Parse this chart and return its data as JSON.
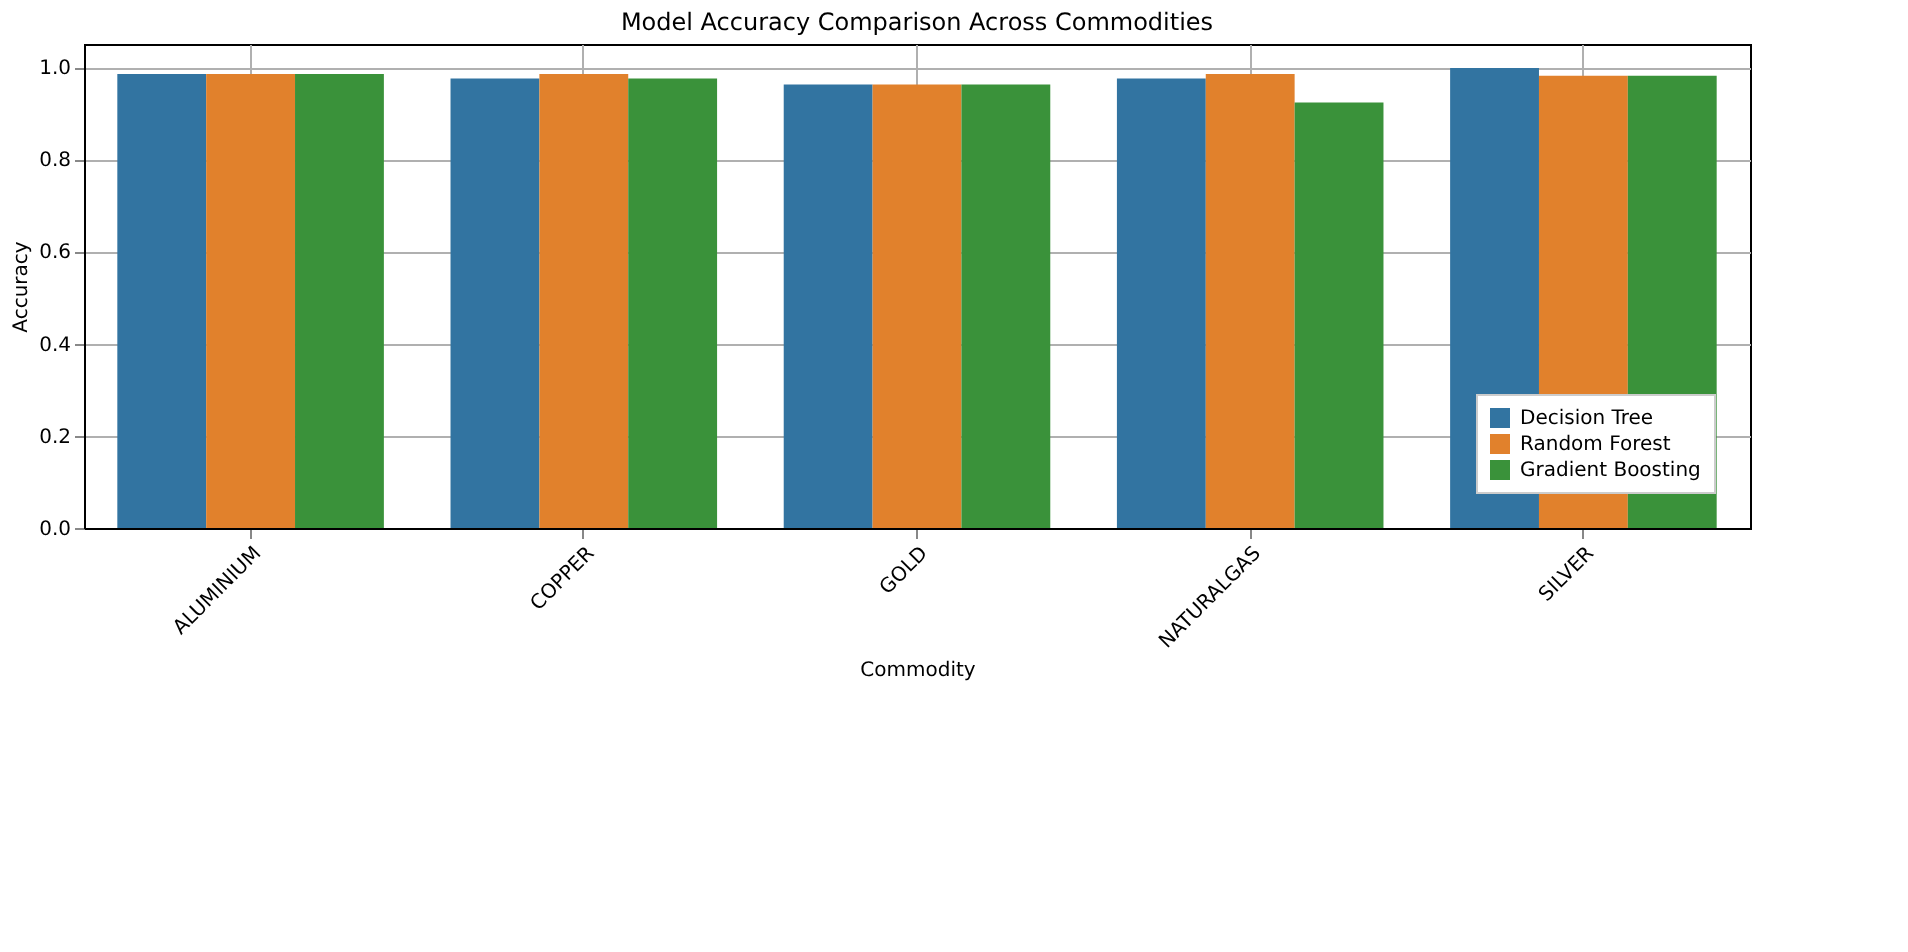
{
  "chart_data": {
    "type": "bar",
    "title": "Model Accuracy Comparison Across Commodities",
    "xlabel": "Commodity",
    "ylabel": "Accuracy",
    "categories": [
      "ALUMINIUM",
      "COPPER",
      "GOLD",
      "NATURALGAS",
      "SILVER"
    ],
    "series": [
      {
        "name": "Decision Tree",
        "color": "#3274a1",
        "values": [
          0.985,
          0.975,
          0.962,
          0.975,
          0.998
        ]
      },
      {
        "name": "Random Forest",
        "color": "#e1812c",
        "values": [
          0.985,
          0.985,
          0.962,
          0.985,
          0.981
        ]
      },
      {
        "name": "Gradient Boosting",
        "color": "#3a923a",
        "values": [
          0.985,
          0.975,
          0.962,
          0.923,
          0.981
        ]
      }
    ],
    "ylim": [
      0,
      1.05
    ],
    "yticks": [
      {
        "value": 0,
        "label": "0.0"
      },
      0.2,
      0.4,
      0.6,
      0.8,
      {
        "value": 1,
        "label": "1.0"
      }
    ],
    "grid": true,
    "legend": "bottom right"
  }
}
